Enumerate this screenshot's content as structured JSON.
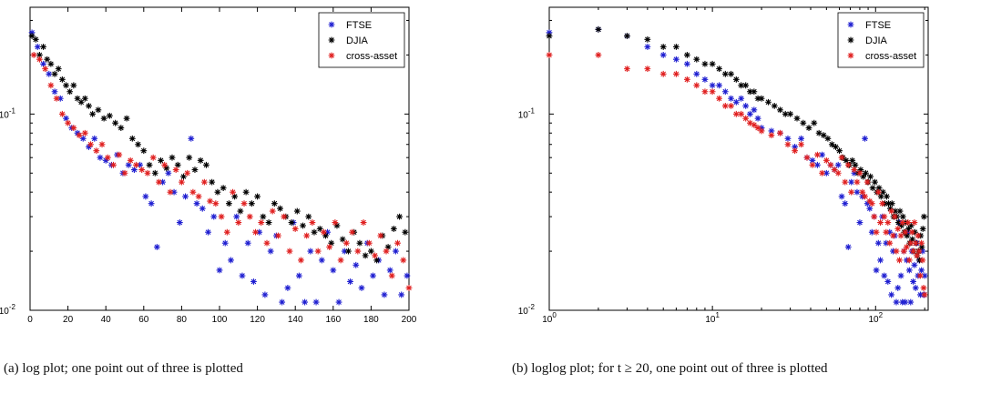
{
  "captions": {
    "a": "(a) log plot; one point out of three is plotted",
    "b": "(b) loglog plot; for t ≥ 20, one point out of three is plotted"
  },
  "chart_data": [
    {
      "type": "scatter",
      "title": "",
      "xlabel": "",
      "ylabel": "",
      "xscale": "linear",
      "yscale": "log",
      "xlim": [
        0,
        200
      ],
      "ylim": [
        0.01,
        0.35
      ],
      "xticks": [
        0,
        20,
        40,
        60,
        80,
        100,
        120,
        140,
        160,
        180,
        200
      ],
      "yticks": [
        {
          "value": 0.1,
          "base": "10",
          "exp": "-1"
        },
        {
          "value": 0.01,
          "base": "10",
          "exp": "-2"
        }
      ],
      "grid": false,
      "legend_position": "top-right",
      "marker": "*",
      "series": [
        {
          "name": "FTSE",
          "color": "#1f1fd1",
          "x": [
            1,
            4,
            7,
            10,
            13,
            16,
            19,
            22,
            25,
            28,
            31,
            34,
            37,
            40,
            43,
            46,
            49,
            52,
            55,
            58,
            61,
            64,
            67,
            70,
            73,
            76,
            79,
            82,
            85,
            88,
            91,
            94,
            97,
            100,
            103,
            106,
            109,
            112,
            115,
            118,
            121,
            124,
            127,
            130,
            133,
            136,
            139,
            142,
            145,
            148,
            151,
            154,
            157,
            160,
            163,
            166,
            169,
            172,
            175,
            178,
            181,
            184,
            187,
            190,
            193,
            196,
            199
          ],
          "y": [
            0.26,
            0.22,
            0.18,
            0.16,
            0.13,
            0.12,
            0.095,
            0.085,
            0.08,
            0.075,
            0.068,
            0.075,
            0.06,
            0.058,
            0.055,
            0.062,
            0.05,
            0.055,
            0.052,
            0.055,
            0.038,
            0.035,
            0.021,
            0.045,
            0.05,
            0.04,
            0.028,
            0.038,
            0.075,
            0.035,
            0.033,
            0.025,
            0.03,
            0.016,
            0.022,
            0.018,
            0.03,
            0.015,
            0.022,
            0.014,
            0.025,
            0.012,
            0.02,
            0.024,
            0.011,
            0.013,
            0.028,
            0.015,
            0.011,
            0.02,
            0.011,
            0.018,
            0.025,
            0.016,
            0.011,
            0.02,
            0.014,
            0.017,
            0.013,
            0.022,
            0.015,
            0.018,
            0.012,
            0.016,
            0.02,
            0.012,
            0.015
          ]
        },
        {
          "name": "DJIA",
          "color": "#000000",
          "x": [
            1,
            3,
            5,
            7,
            9,
            11,
            13,
            15,
            17,
            19,
            21,
            23,
            25,
            27,
            29,
            31,
            33,
            36,
            39,
            42,
            45,
            48,
            51,
            54,
            57,
            60,
            63,
            66,
            69,
            72,
            75,
            78,
            81,
            84,
            87,
            90,
            93,
            96,
            99,
            102,
            105,
            108,
            111,
            114,
            117,
            120,
            123,
            126,
            129,
            132,
            135,
            138,
            141,
            144,
            147,
            150,
            153,
            156,
            159,
            162,
            165,
            168,
            171,
            174,
            177,
            180,
            183,
            186,
            189,
            192,
            195,
            198
          ],
          "y": [
            0.25,
            0.24,
            0.2,
            0.22,
            0.19,
            0.18,
            0.16,
            0.17,
            0.15,
            0.14,
            0.13,
            0.14,
            0.12,
            0.115,
            0.12,
            0.11,
            0.1,
            0.105,
            0.095,
            0.098,
            0.09,
            0.085,
            0.095,
            0.075,
            0.07,
            0.065,
            0.055,
            0.05,
            0.058,
            0.053,
            0.06,
            0.055,
            0.048,
            0.06,
            0.052,
            0.058,
            0.055,
            0.045,
            0.04,
            0.042,
            0.035,
            0.038,
            0.032,
            0.04,
            0.035,
            0.038,
            0.03,
            0.028,
            0.035,
            0.033,
            0.03,
            0.028,
            0.032,
            0.027,
            0.03,
            0.025,
            0.026,
            0.024,
            0.022,
            0.027,
            0.023,
            0.02,
            0.025,
            0.022,
            0.019,
            0.02,
            0.018,
            0.024,
            0.021,
            0.026,
            0.03,
            0.025
          ]
        },
        {
          "name": "cross-asset",
          "color": "#e02020",
          "x": [
            2,
            5,
            8,
            11,
            14,
            17,
            20,
            23,
            26,
            29,
            32,
            35,
            38,
            41,
            44,
            47,
            50,
            53,
            56,
            59,
            62,
            65,
            68,
            71,
            74,
            77,
            80,
            83,
            86,
            89,
            92,
            95,
            98,
            101,
            104,
            107,
            110,
            113,
            116,
            119,
            122,
            125,
            128,
            131,
            134,
            137,
            140,
            143,
            146,
            149,
            152,
            155,
            158,
            161,
            164,
            167,
            170,
            173,
            176,
            179,
            182,
            185,
            188,
            191,
            194,
            197,
            200
          ],
          "y": [
            0.2,
            0.19,
            0.17,
            0.14,
            0.12,
            0.1,
            0.09,
            0.085,
            0.078,
            0.08,
            0.07,
            0.065,
            0.07,
            0.06,
            0.055,
            0.062,
            0.05,
            0.058,
            0.055,
            0.052,
            0.05,
            0.06,
            0.045,
            0.055,
            0.04,
            0.052,
            0.045,
            0.05,
            0.04,
            0.038,
            0.045,
            0.036,
            0.035,
            0.03,
            0.025,
            0.04,
            0.028,
            0.035,
            0.03,
            0.025,
            0.028,
            0.022,
            0.032,
            0.024,
            0.03,
            0.02,
            0.026,
            0.018,
            0.024,
            0.028,
            0.02,
            0.025,
            0.021,
            0.028,
            0.018,
            0.022,
            0.025,
            0.02,
            0.028,
            0.022,
            0.019,
            0.024,
            0.02,
            0.015,
            0.022,
            0.018,
            0.013
          ]
        }
      ]
    },
    {
      "type": "scatter",
      "title": "",
      "xlabel": "",
      "ylabel": "",
      "xscale": "log",
      "yscale": "log",
      "xlim": [
        1,
        210
      ],
      "ylim": [
        0.01,
        0.35
      ],
      "xticks": [
        {
          "value": 1,
          "base": "10",
          "exp": "0"
        },
        {
          "value": 10,
          "base": "10",
          "exp": "1"
        },
        {
          "value": 100,
          "base": "10",
          "exp": "2"
        }
      ],
      "yticks": [
        {
          "value": 0.1,
          "base": "10",
          "exp": "-1"
        },
        {
          "value": 0.01,
          "base": "10",
          "exp": "-2"
        }
      ],
      "grid": false,
      "legend_position": "top-right",
      "marker": "*",
      "series": [
        {
          "name": "FTSE",
          "color": "#1f1fd1",
          "x": [
            1,
            2,
            3,
            4,
            5,
            6,
            7,
            8,
            9,
            10,
            11,
            12,
            13,
            14,
            15,
            16,
            17,
            18,
            19,
            20,
            23,
            26,
            29,
            32,
            35,
            38,
            41,
            44,
            47,
            50,
            53,
            56,
            59,
            62,
            65,
            68,
            71,
            74,
            77,
            80,
            83,
            86,
            89,
            92,
            95,
            98,
            101,
            104,
            107,
            110,
            113,
            116,
            119,
            122,
            125,
            128,
            131,
            134,
            137,
            140,
            143,
            146,
            149,
            152,
            155,
            158,
            161,
            164,
            167,
            170,
            173,
            176,
            179,
            182,
            185,
            188,
            191,
            194,
            197,
            200
          ],
          "y": [
            0.26,
            0.27,
            0.25,
            0.22,
            0.2,
            0.19,
            0.18,
            0.16,
            0.15,
            0.14,
            0.14,
            0.13,
            0.12,
            0.115,
            0.12,
            0.11,
            0.1,
            0.105,
            0.095,
            0.085,
            0.082,
            0.08,
            0.075,
            0.068,
            0.075,
            0.06,
            0.058,
            0.055,
            0.062,
            0.05,
            0.055,
            0.052,
            0.055,
            0.038,
            0.035,
            0.021,
            0.045,
            0.05,
            0.04,
            0.028,
            0.038,
            0.075,
            0.035,
            0.033,
            0.025,
            0.03,
            0.016,
            0.022,
            0.018,
            0.03,
            0.015,
            0.022,
            0.014,
            0.025,
            0.012,
            0.02,
            0.024,
            0.011,
            0.013,
            0.028,
            0.015,
            0.011,
            0.02,
            0.011,
            0.018,
            0.025,
            0.016,
            0.011,
            0.02,
            0.014,
            0.017,
            0.013,
            0.022,
            0.015,
            0.018,
            0.012,
            0.016,
            0.02,
            0.012,
            0.015
          ]
        },
        {
          "name": "DJIA",
          "color": "#000000",
          "x": [
            1,
            2,
            3,
            4,
            5,
            6,
            7,
            8,
            9,
            10,
            11,
            12,
            13,
            14,
            15,
            16,
            17,
            18,
            19,
            20,
            22,
            24,
            26,
            28,
            30,
            33,
            36,
            39,
            42,
            45,
            48,
            51,
            54,
            57,
            60,
            63,
            66,
            69,
            72,
            75,
            78,
            81,
            84,
            87,
            90,
            93,
            96,
            99,
            102,
            105,
            108,
            111,
            114,
            117,
            120,
            123,
            126,
            129,
            132,
            135,
            138,
            141,
            144,
            147,
            150,
            153,
            156,
            159,
            162,
            165,
            168,
            171,
            174,
            177,
            180,
            183,
            186,
            189,
            192,
            195,
            198
          ],
          "y": [
            0.25,
            0.27,
            0.25,
            0.24,
            0.22,
            0.22,
            0.2,
            0.19,
            0.18,
            0.18,
            0.17,
            0.16,
            0.16,
            0.15,
            0.14,
            0.14,
            0.13,
            0.13,
            0.12,
            0.12,
            0.115,
            0.11,
            0.105,
            0.1,
            0.1,
            0.095,
            0.09,
            0.085,
            0.09,
            0.08,
            0.078,
            0.075,
            0.07,
            0.068,
            0.065,
            0.06,
            0.058,
            0.055,
            0.058,
            0.055,
            0.05,
            0.052,
            0.048,
            0.05,
            0.045,
            0.048,
            0.042,
            0.045,
            0.04,
            0.042,
            0.038,
            0.04,
            0.035,
            0.038,
            0.035,
            0.033,
            0.035,
            0.03,
            0.032,
            0.03,
            0.028,
            0.032,
            0.027,
            0.03,
            0.025,
            0.028,
            0.024,
            0.026,
            0.022,
            0.027,
            0.023,
            0.02,
            0.025,
            0.022,
            0.019,
            0.02,
            0.018,
            0.024,
            0.021,
            0.026,
            0.03
          ]
        },
        {
          "name": "cross-asset",
          "color": "#e02020",
          "x": [
            1,
            2,
            3,
            4,
            5,
            6,
            7,
            8,
            9,
            10,
            11,
            12,
            13,
            14,
            15,
            16,
            17,
            18,
            19,
            20,
            23,
            26,
            29,
            32,
            35,
            38,
            41,
            44,
            47,
            50,
            53,
            56,
            59,
            62,
            65,
            68,
            71,
            74,
            77,
            80,
            83,
            86,
            89,
            92,
            95,
            98,
            101,
            104,
            107,
            110,
            113,
            116,
            119,
            122,
            125,
            128,
            131,
            134,
            137,
            140,
            143,
            146,
            149,
            152,
            155,
            158,
            161,
            164,
            167,
            170,
            173,
            176,
            179,
            182,
            185,
            188,
            191,
            194,
            197,
            200
          ],
          "y": [
            0.2,
            0.2,
            0.17,
            0.17,
            0.16,
            0.16,
            0.15,
            0.14,
            0.13,
            0.13,
            0.12,
            0.11,
            0.11,
            0.1,
            0.1,
            0.095,
            0.09,
            0.088,
            0.085,
            0.082,
            0.078,
            0.08,
            0.07,
            0.065,
            0.07,
            0.06,
            0.055,
            0.062,
            0.05,
            0.058,
            0.055,
            0.052,
            0.05,
            0.06,
            0.045,
            0.055,
            0.04,
            0.052,
            0.045,
            0.05,
            0.04,
            0.038,
            0.045,
            0.036,
            0.035,
            0.03,
            0.025,
            0.04,
            0.028,
            0.035,
            0.03,
            0.025,
            0.028,
            0.022,
            0.032,
            0.024,
            0.03,
            0.02,
            0.026,
            0.018,
            0.024,
            0.028,
            0.02,
            0.025,
            0.021,
            0.028,
            0.018,
            0.022,
            0.025,
            0.02,
            0.028,
            0.022,
            0.019,
            0.024,
            0.02,
            0.015,
            0.022,
            0.018,
            0.013,
            0.012
          ]
        }
      ]
    }
  ]
}
